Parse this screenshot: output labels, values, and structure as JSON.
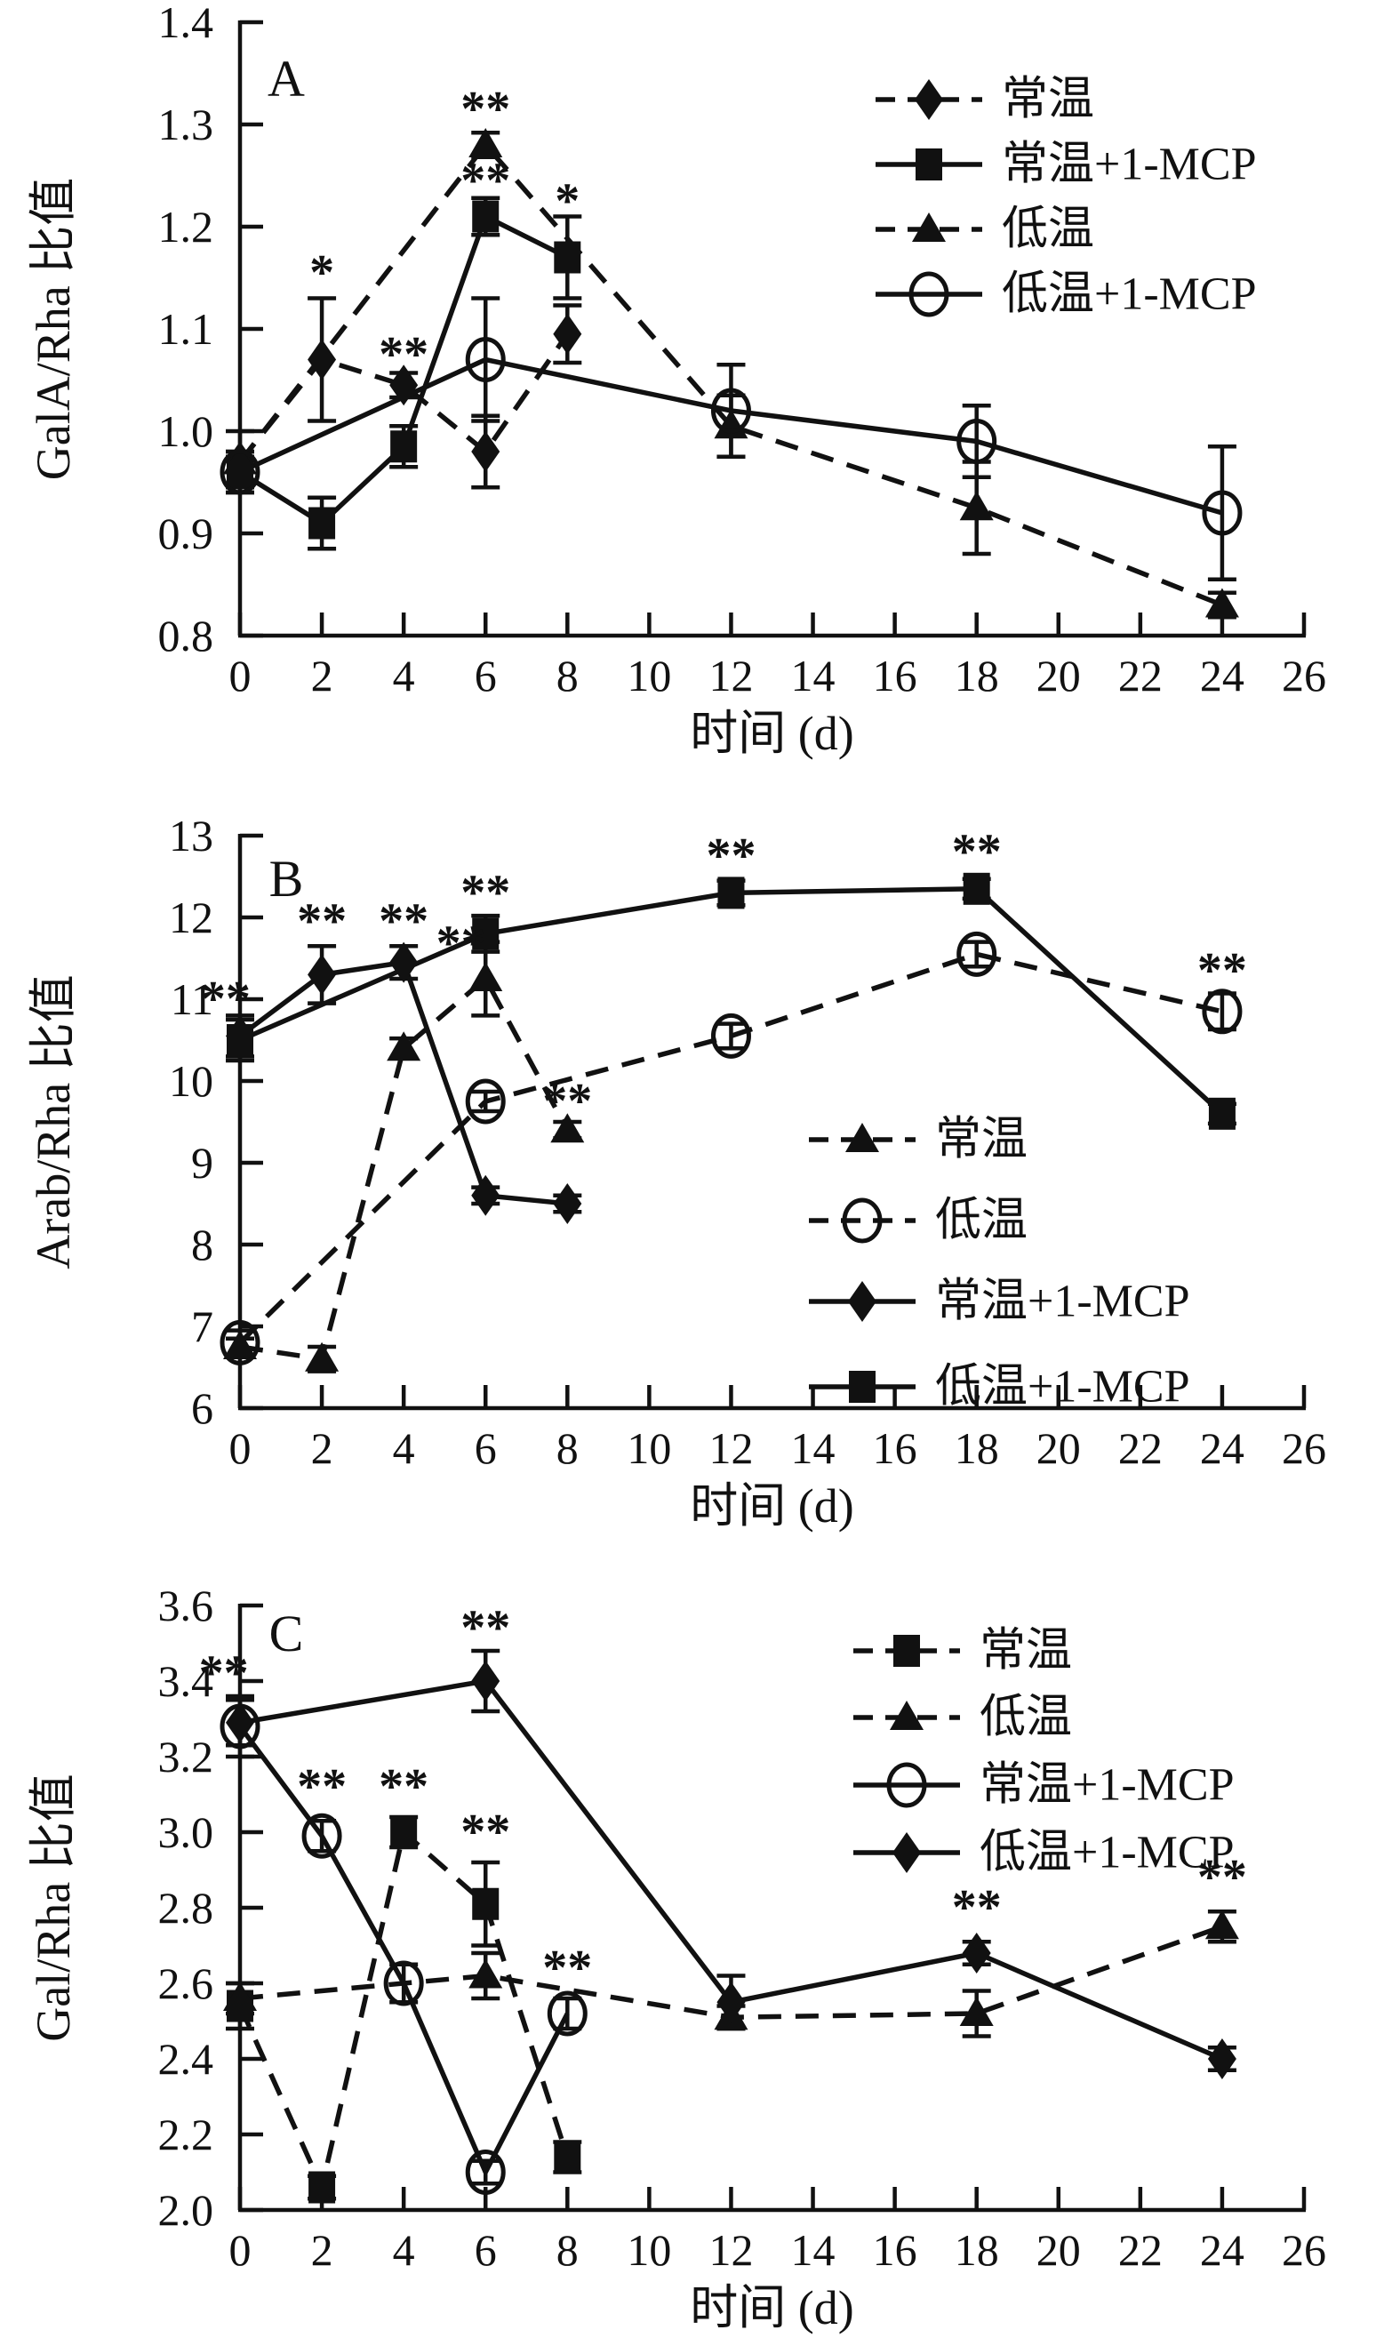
{
  "page": {
    "background": "#ffffff",
    "ink": "#111111"
  },
  "chart_data": [
    {
      "type": "line",
      "panel_label": "A",
      "xlabel": "时间 (d)",
      "ylabel": "GalA/Rha 比值",
      "xlim": [
        0,
        26
      ],
      "ylim": [
        0.8,
        1.4
      ],
      "xticks": [
        "0",
        "2",
        "4",
        "6",
        "8",
        "10",
        "12",
        "14",
        "16",
        "18",
        "20",
        "22",
        "24",
        "26"
      ],
      "yticks": [
        "0.8",
        "0.9",
        "1.0",
        "1.1",
        "1.2",
        "1.3",
        "1.4"
      ],
      "grid": false,
      "legend_position": "upper-right",
      "series": [
        {
          "name": "常温",
          "marker": "diamond",
          "fill": "filled",
          "linestyle": "dashed",
          "x": [
            0,
            2,
            4,
            6,
            8
          ],
          "y": [
            0.97,
            1.07,
            1.045,
            0.98,
            1.095
          ],
          "err": [
            0.03,
            0.06,
            0.012,
            0.035,
            0.028
          ]
        },
        {
          "name": "常温+1-MCP",
          "marker": "square",
          "fill": "filled",
          "linestyle": "solid",
          "x": [
            0,
            2,
            4,
            6,
            8
          ],
          "y": [
            0.96,
            0.91,
            0.985,
            1.21,
            1.17
          ],
          "err": [
            0.015,
            0.025,
            0.02,
            0.018,
            0.04
          ]
        },
        {
          "name": "低温",
          "marker": "triangle",
          "fill": "filled",
          "linestyle": "dashed",
          "x": [
            0,
            6,
            12,
            18,
            24
          ],
          "y": [
            0.97,
            1.28,
            1.005,
            0.925,
            0.83
          ],
          "err": [
            0.01,
            0.012,
            0.03,
            0.045,
            0.012
          ]
        },
        {
          "name": "低温+1-MCP",
          "marker": "circle",
          "fill": "open",
          "linestyle": "solid",
          "x": [
            0,
            6,
            12,
            18,
            24
          ],
          "y": [
            0.96,
            1.07,
            1.02,
            0.99,
            0.92
          ],
          "err": [
            0.02,
            0.06,
            0.045,
            0.035,
            0.065
          ]
        }
      ],
      "annotations": [
        {
          "text": "*",
          "x": 2,
          "y": 1.155
        },
        {
          "text": "**",
          "x": 4,
          "y": 1.075
        },
        {
          "text": "**",
          "x": 6,
          "y": 1.315
        },
        {
          "text": "**",
          "x": 6,
          "y": 1.245
        },
        {
          "text": "*",
          "x": 8,
          "y": 1.225
        }
      ]
    },
    {
      "type": "line",
      "panel_label": "B",
      "xlabel": "时间 (d)",
      "ylabel": "Arab/Rha 比值",
      "xlim": [
        0,
        26
      ],
      "ylim": [
        6,
        13
      ],
      "xticks": [
        "0",
        "2",
        "4",
        "6",
        "8",
        "10",
        "12",
        "14",
        "16",
        "18",
        "20",
        "22",
        "24",
        "26"
      ],
      "yticks": [
        "6",
        "7",
        "8",
        "9",
        "10",
        "11",
        "12",
        "13"
      ],
      "grid": false,
      "legend_position": "center-right",
      "series": [
        {
          "name": "常温",
          "marker": "triangle",
          "fill": "filled",
          "linestyle": "dashed",
          "x": [
            0,
            2,
            4,
            6,
            8
          ],
          "y": [
            6.75,
            6.6,
            10.4,
            11.25,
            9.4
          ],
          "err": [
            0.1,
            0.15,
            0.12,
            0.45,
            0.1
          ]
        },
        {
          "name": "低温",
          "marker": "circle",
          "fill": "open",
          "linestyle": "dashed",
          "x": [
            0,
            6,
            12,
            18,
            24
          ],
          "y": [
            6.8,
            9.75,
            10.55,
            11.55,
            10.85
          ],
          "err": [
            0.15,
            0.12,
            0.15,
            0.15,
            0.22
          ]
        },
        {
          "name": "常温+1-MCP",
          "marker": "diamond",
          "fill": "filled",
          "linestyle": "solid",
          "x": [
            0,
            2,
            4,
            6,
            8
          ],
          "y": [
            10.55,
            11.3,
            11.45,
            8.6,
            8.5
          ],
          "err": [
            0.25,
            0.35,
            0.2,
            0.1,
            0.1
          ]
        },
        {
          "name": "低温+1-MCP",
          "marker": "square",
          "fill": "filled",
          "linestyle": "solid",
          "x": [
            0,
            6,
            12,
            18,
            24
          ],
          "y": [
            10.5,
            11.8,
            12.3,
            12.35,
            9.6
          ],
          "err": [
            0.25,
            0.22,
            0.15,
            0.12,
            0.12
          ]
        }
      ],
      "annotations": [
        {
          "text": "**",
          "x": -0.35,
          "y": 11.0
        },
        {
          "text": "**",
          "x": 2,
          "y": 11.95
        },
        {
          "text": "**",
          "x": 4,
          "y": 11.95
        },
        {
          "text": "**",
          "x": 5.4,
          "y": 11.68
        },
        {
          "text": "**",
          "x": 6,
          "y": 12.3
        },
        {
          "text": "**",
          "x": 8,
          "y": 9.75
        },
        {
          "text": "**",
          "x": 12,
          "y": 12.75
        },
        {
          "text": "**",
          "x": 18,
          "y": 12.8
        },
        {
          "text": "**",
          "x": 24,
          "y": 11.35
        }
      ]
    },
    {
      "type": "line",
      "panel_label": "C",
      "xlabel": "时间 (d)",
      "ylabel": "Gal/Rha 比值",
      "xlim": [
        0,
        26
      ],
      "ylim": [
        2.0,
        3.6
      ],
      "xticks": [
        "0",
        "2",
        "4",
        "6",
        "8",
        "10",
        "12",
        "14",
        "16",
        "18",
        "20",
        "22",
        "24",
        "26"
      ],
      "yticks": [
        "2.0",
        "2.2",
        "2.4",
        "2.6",
        "2.8",
        "3.0",
        "3.2",
        "3.4",
        "3.6"
      ],
      "grid": false,
      "legend_position": "upper-right",
      "series": [
        {
          "name": "常温",
          "marker": "square",
          "fill": "filled",
          "linestyle": "dashed",
          "x": [
            0,
            2,
            4,
            6,
            8
          ],
          "y": [
            2.54,
            2.06,
            3.0,
            2.81,
            2.14
          ],
          "err": [
            0.06,
            0.03,
            0.04,
            0.11,
            0.04
          ]
        },
        {
          "name": "低温",
          "marker": "triangle",
          "fill": "filled",
          "linestyle": "dashed",
          "x": [
            0,
            6,
            12,
            18,
            24
          ],
          "y": [
            2.56,
            2.62,
            2.51,
            2.52,
            2.75
          ],
          "err": [
            0.04,
            0.06,
            0.03,
            0.06,
            0.04
          ]
        },
        {
          "name": "常温+1-MCP",
          "marker": "circle",
          "fill": "open",
          "linestyle": "solid",
          "x": [
            0,
            2,
            4,
            6,
            8
          ],
          "y": [
            3.28,
            2.99,
            2.6,
            2.1,
            2.52
          ],
          "err": [
            0.08,
            0.04,
            0.05,
            0.03,
            0.04
          ]
        },
        {
          "name": "低温+1-MCP",
          "marker": "diamond",
          "fill": "filled",
          "linestyle": "solid",
          "x": [
            0,
            6,
            12,
            18,
            24
          ],
          "y": [
            3.29,
            3.4,
            2.55,
            2.68,
            2.4
          ],
          "err": [
            0.06,
            0.08,
            0.07,
            0.03,
            0.03
          ]
        }
      ],
      "annotations": [
        {
          "text": "**",
          "x": -0.4,
          "y": 3.42
        },
        {
          "text": "**",
          "x": 2,
          "y": 3.12
        },
        {
          "text": "**",
          "x": 4,
          "y": 3.12
        },
        {
          "text": "**",
          "x": 6,
          "y": 3.0
        },
        {
          "text": "**",
          "x": 6,
          "y": 3.54
        },
        {
          "text": "**",
          "x": 8,
          "y": 2.64
        },
        {
          "text": "**",
          "x": 18,
          "y": 2.8
        },
        {
          "text": "**",
          "x": 24,
          "y": 2.88
        }
      ]
    }
  ]
}
